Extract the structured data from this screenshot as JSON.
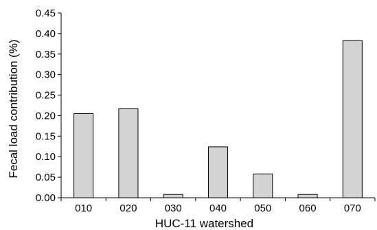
{
  "chart_data": {
    "type": "bar",
    "title": "",
    "xlabel": "HUC-11 watershed",
    "ylabel": "Fecal load contribution (%)",
    "categories": [
      "010",
      "020",
      "030",
      "040",
      "050",
      "060",
      "070"
    ],
    "values": [
      0.205,
      0.217,
      0.008,
      0.124,
      0.058,
      0.008,
      0.383
    ],
    "ylim": [
      0,
      0.45
    ],
    "yticks": [
      "0.00",
      "0.05",
      "0.10",
      "0.15",
      "0.20",
      "0.25",
      "0.30",
      "0.35",
      "0.40",
      "0.45"
    ],
    "grid": false,
    "legend": "none",
    "bar_fill": "#d3d3d3",
    "bar_stroke": "#000000"
  }
}
